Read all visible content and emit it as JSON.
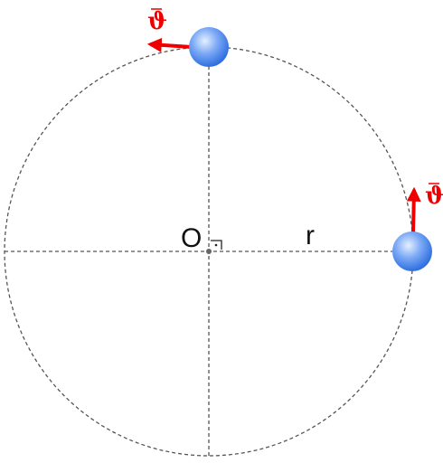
{
  "labels": {
    "center": "O",
    "radius": "r",
    "velocity_top": "ϑ",
    "velocity_right": "ϑ"
  }
}
